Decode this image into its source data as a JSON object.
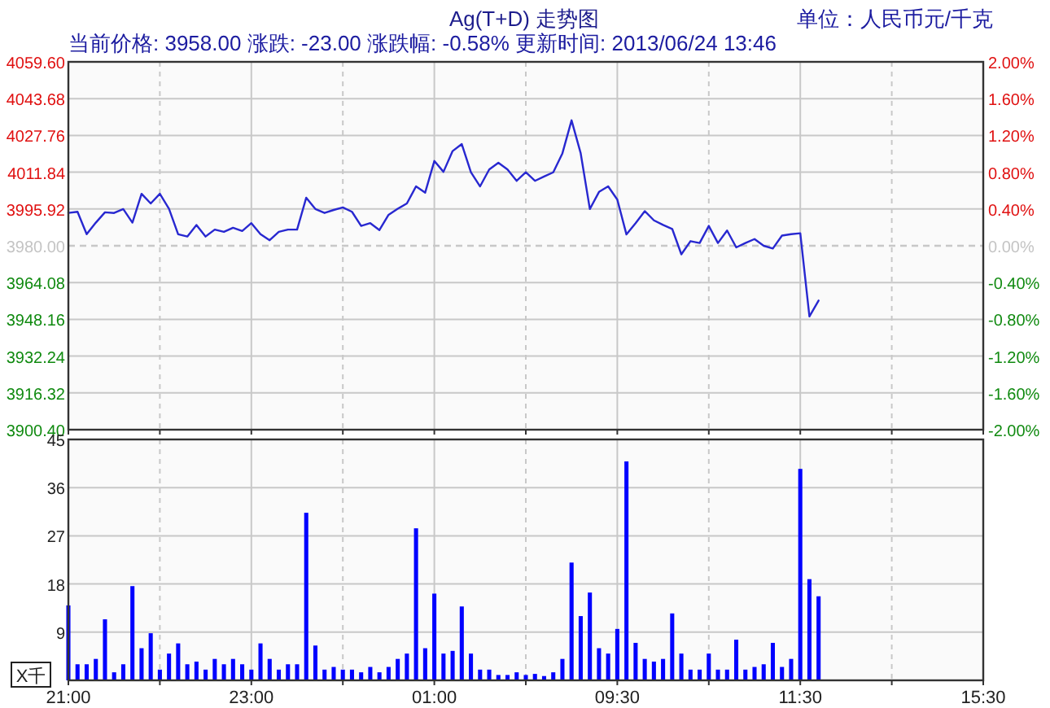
{
  "chart_data": [
    {
      "type": "line",
      "title": "Ag(T+D) 走势图",
      "subtitle": "当前价格: 3958.00 涨跌: -23.00 涨跌幅: -0.58% 更新时间: 2013/06/24 13:46",
      "annotations": [
        "单位：人民币元/千克"
      ],
      "categories": [
        null,
        null,
        null,
        null,
        null,
        null,
        null,
        null,
        null,
        null,
        null,
        null,
        null,
        null,
        null,
        null,
        null,
        null,
        null,
        null,
        null,
        null,
        null,
        null,
        null,
        null,
        null,
        null,
        null,
        null,
        null,
        null,
        null,
        null,
        null,
        null,
        null,
        null,
        null,
        null,
        null,
        null,
        null,
        null,
        null,
        null,
        null,
        null,
        null,
        null,
        null,
        null,
        null,
        null,
        null,
        null,
        null,
        null,
        null,
        null,
        null,
        null,
        null,
        null,
        null,
        null,
        null,
        null,
        null,
        null,
        null,
        null,
        null,
        null,
        null,
        null,
        null,
        null,
        null,
        null,
        null,
        null,
        null,
        null,
        null,
        null,
        null,
        null,
        null,
        null,
        null,
        null,
        null,
        null,
        null,
        null,
        null,
        null,
        null,
        null,
        null
      ],
      "series": [
        {
          "color": "#2828d0",
          "values": [
            3994.2,
            3994.7,
            3985,
            3990,
            3994.5,
            3994.2,
            3995.9,
            3990,
            4002.5,
            3998.3,
            4002.5,
            3996,
            3985,
            3984,
            3989,
            3984,
            3987,
            3986,
            3987.8,
            3986.4,
            3989.8,
            3985,
            3982.4,
            3986,
            3987,
            3987,
            4000.8,
            3995.9,
            3994.2,
            3995.5,
            3996.6,
            3994.7,
            3988.6,
            3989.8,
            3986.8,
            3993.4,
            3996,
            3998.3,
            4005.7,
            4003,
            4016.7,
            4012,
            4021,
            4024,
            4011.8,
            4005.7,
            4013,
            4015.9,
            4013,
            4008.1,
            4011.8,
            4008.1,
            4010,
            4011.8,
            4020,
            4034.3,
            4020,
            3995.9,
            4003.3,
            4005.7,
            4000,
            3984.9,
            3989.8,
            3995,
            3991,
            3989,
            3987.3,
            3976.3,
            3982,
            3981.2,
            3988.6,
            3981.2,
            3986.6,
            3979.3,
            3981.2,
            3982.9,
            3980,
            3978.8,
            3984.4,
            3985,
            3985.4,
            3949.4,
            3956.3,
            null,
            null,
            null,
            null,
            null,
            null,
            null,
            null,
            null,
            null,
            null,
            null,
            null,
            null,
            null,
            null,
            null,
            null
          ]
        }
      ],
      "ylim": [
        3900.4,
        4059.6
      ],
      "yticks": [
        {
          "value": 3900.4,
          "label": "3900.40"
        },
        {
          "value": 3916.32,
          "label": "3916.32"
        },
        {
          "value": 3932.24,
          "label": "3932.24"
        },
        {
          "value": 3948.16,
          "label": "3948.16"
        },
        {
          "value": 3964.08,
          "label": "3964.08"
        },
        {
          "value": 3980,
          "label": "3980.00"
        },
        {
          "value": 3995.92,
          "label": "3995.92"
        },
        {
          "value": 4011.84,
          "label": "4011.84"
        },
        {
          "value": 4027.76,
          "label": "4027.76"
        },
        {
          "value": 4043.68,
          "label": "4043.68"
        },
        {
          "value": 4059.6,
          "label": "4059.60"
        }
      ],
      "y2lim": [
        -2,
        2
      ],
      "y2ticks": [
        {
          "value": -2,
          "label": "-2.00%"
        },
        {
          "value": -1.6,
          "label": "-1.60%"
        },
        {
          "value": -1.2,
          "label": "-1.20%"
        },
        {
          "value": -0.8,
          "label": "-0.80%"
        },
        {
          "value": -0.4,
          "label": "-0.40%"
        },
        {
          "value": 0,
          "label": "0.00%"
        },
        {
          "value": 0.4,
          "label": "0.40%"
        },
        {
          "value": 0.8,
          "label": "0.80%"
        },
        {
          "value": 1.2,
          "label": "1.20%"
        },
        {
          "value": 1.6,
          "label": "1.60%"
        },
        {
          "value": 2,
          "label": "2.00%"
        }
      ],
      "ref_lines": [
        {
          "axis": "y",
          "value": 3980,
          "color": "#c8c8c8",
          "line_style": "dashed"
        }
      ],
      "grid": true,
      "tick_labels": "y"
    },
    {
      "type": "bar",
      "ylabel": "X千",
      "categories": [
        "21:00",
        null,
        null,
        null,
        null,
        null,
        null,
        null,
        null,
        null,
        null,
        null,
        null,
        null,
        null,
        null,
        null,
        null,
        null,
        null,
        "23:00",
        null,
        null,
        null,
        null,
        null,
        null,
        null,
        null,
        null,
        null,
        null,
        null,
        null,
        null,
        null,
        null,
        null,
        null,
        null,
        "01:00",
        null,
        null,
        null,
        null,
        null,
        null,
        null,
        null,
        null,
        null,
        null,
        null,
        null,
        null,
        null,
        null,
        null,
        null,
        null,
        "09:30",
        null,
        null,
        null,
        null,
        null,
        null,
        null,
        null,
        null,
        null,
        null,
        null,
        null,
        null,
        null,
        null,
        null,
        null,
        null,
        "11:30",
        null,
        null,
        null,
        null,
        null,
        null,
        null,
        null,
        null,
        null,
        null,
        null,
        null,
        null,
        null,
        null,
        null,
        null,
        null,
        "15:30"
      ],
      "series": [
        {
          "color": "#0000ff",
          "values": [
            14,
            3,
            3,
            4,
            11.4,
            1.5,
            3,
            17.6,
            6,
            8.8,
            2,
            5,
            6.9,
            3,
            3.5,
            2,
            4,
            3,
            4,
            3,
            2,
            6.9,
            4,
            2,
            3,
            3,
            31.3,
            6.5,
            2,
            2.5,
            2,
            2,
            1.5,
            2.5,
            1.5,
            2.5,
            4,
            5,
            28.4,
            6,
            16.2,
            5,
            5.5,
            13.8,
            5,
            2,
            2,
            1,
            1,
            1.5,
            1,
            1.2,
            0.8,
            1.5,
            4,
            22,
            12,
            16.4,
            6,
            5,
            9.6,
            40.9,
            7,
            4,
            3.5,
            4,
            12.5,
            5,
            2,
            2,
            5,
            2,
            2,
            7.6,
            2,
            2.5,
            3,
            7,
            2.5,
            4,
            39.5,
            18.9,
            15.7,
            null,
            null,
            null,
            null,
            null,
            null,
            null,
            null,
            null,
            null,
            null,
            null,
            null,
            null,
            null,
            null,
            null,
            null
          ]
        }
      ],
      "ylim": [
        0,
        45
      ],
      "yticks": [
        {
          "value": 0,
          "label": null
        },
        9,
        18,
        27,
        36,
        45
      ],
      "grid": true
    }
  ]
}
